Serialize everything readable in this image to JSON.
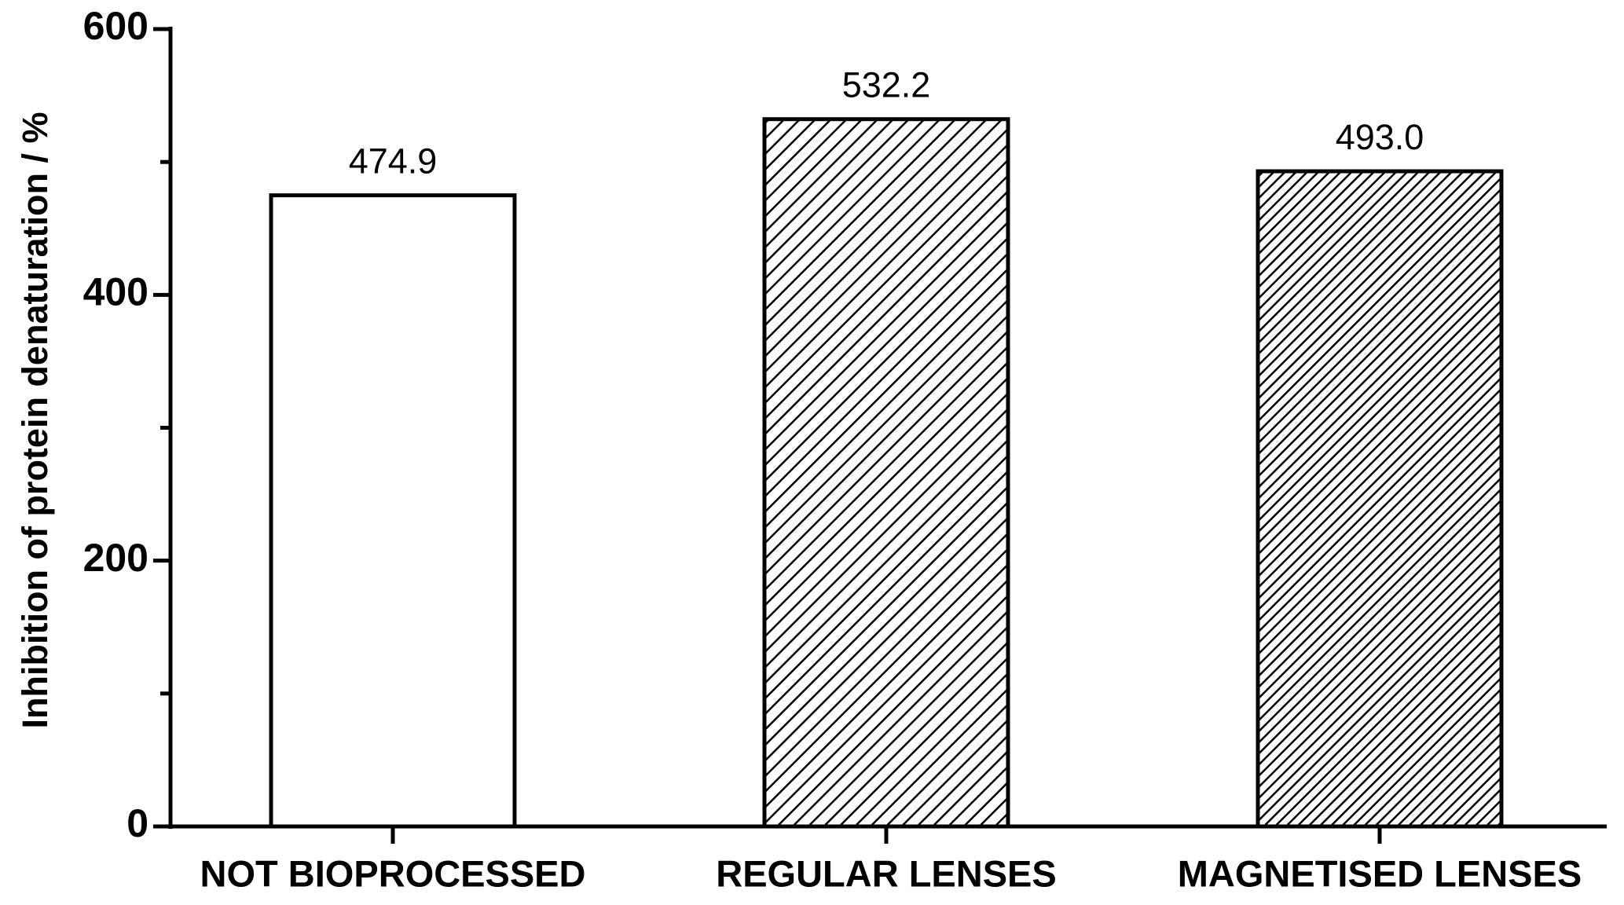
{
  "chart_data": {
    "type": "bar",
    "y_axis_label": "Inhibition of protein denaturation / %",
    "categories": [
      "NOT BIOPROCESSED",
      "REGULAR LENSES",
      "MAGNETISED LENSES"
    ],
    "values": [
      474.9,
      532.2,
      493.0
    ],
    "value_labels": [
      "474.9",
      "532.2",
      "493.0"
    ],
    "fills": [
      "white",
      "hatch",
      "dense-hatch"
    ],
    "ylim": [
      0,
      600
    ],
    "yticks": [
      0,
      200,
      400,
      600
    ],
    "yticks_minor": [
      100,
      300,
      500
    ],
    "grid": false
  }
}
